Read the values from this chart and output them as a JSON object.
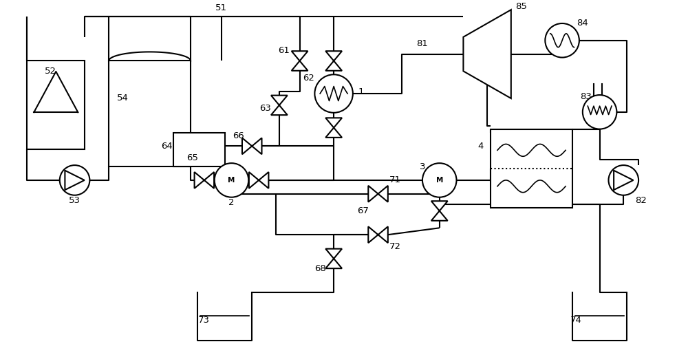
{
  "bg": "#ffffff",
  "lc": "#000000",
  "lw": 1.5
}
